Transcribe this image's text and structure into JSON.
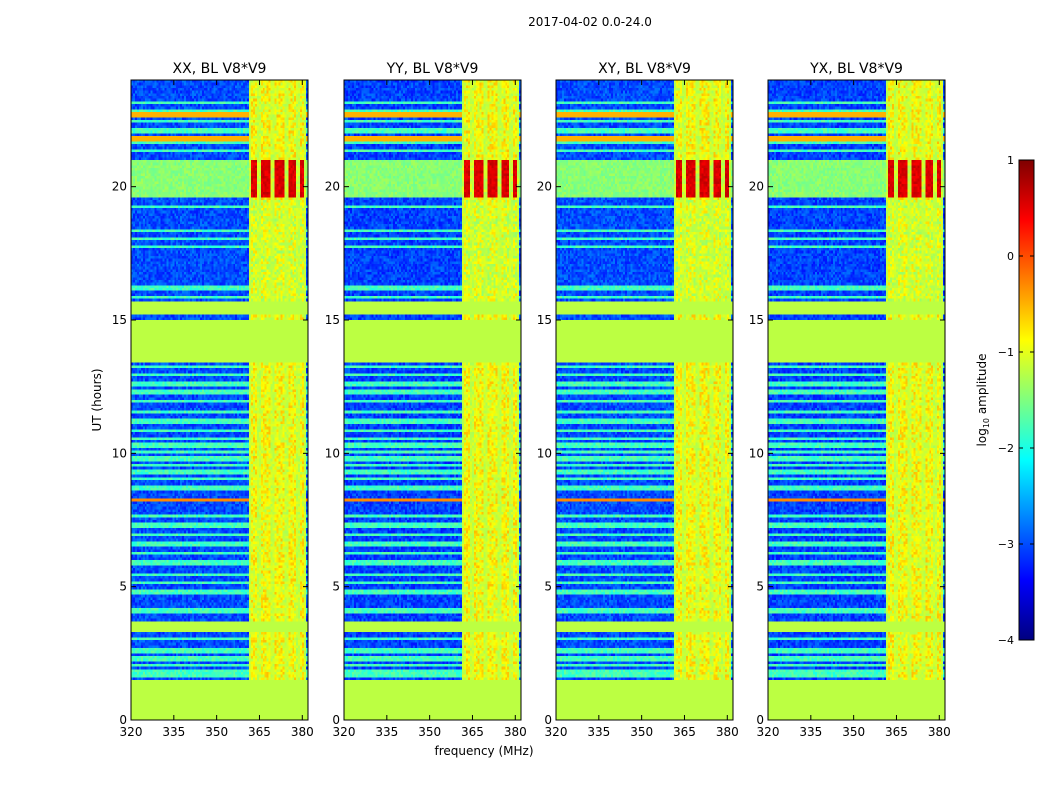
{
  "chart_data": {
    "type": "heatmap",
    "suptitle": "2017-04-02 0.0-24.0",
    "xlabel": "frequency (MHz)",
    "ylabel": "UT (hours)",
    "xlim": [
      320,
      382
    ],
    "ylim": [
      0,
      24
    ],
    "xticks": [
      320,
      335,
      350,
      365,
      380
    ],
    "yticks": [
      0,
      5,
      10,
      15,
      20
    ],
    "panels": [
      {
        "title": "XX, BL V8*V9",
        "pol": "XX"
      },
      {
        "title": "YY, BL V8*V9",
        "pol": "YY"
      },
      {
        "title": "XY, BL V8*V9",
        "pol": "XY"
      },
      {
        "title": "YX, BL V8*V9",
        "pol": "YX"
      }
    ],
    "flagged_hours": [
      [
        0,
        1.55
      ],
      [
        3.3,
        3.65
      ],
      [
        13.4,
        15.0
      ],
      [
        15.2,
        15.7
      ]
    ],
    "flagged_level": -1.2,
    "band_region_mhz": [
      361,
      381
    ],
    "band_edges_mhz": [
      361.2,
      364.6,
      369.6,
      374.4,
      378.3,
      381.0
    ],
    "bright_band_hours": [
      [
        19.6,
        21.0
      ]
    ],
    "rfi_hours": [
      1.7,
      1.85,
      2.05,
      2.3,
      2.6,
      3.05,
      4.1,
      4.8,
      5.15,
      5.45,
      5.9,
      6.25,
      6.6,
      6.95,
      7.3,
      7.65,
      8.25,
      8.7,
      9.05,
      9.3,
      9.55,
      9.8,
      10.05,
      10.3,
      10.55,
      10.85,
      11.2,
      11.55,
      11.95,
      12.3,
      12.6,
      12.95,
      13.25,
      15.85,
      16.2,
      17.75,
      18.05,
      18.35,
      19.25,
      21.35,
      21.7,
      22.1,
      22.45,
      22.8,
      23.15
    ],
    "colorbar": {
      "label_prefix": "log",
      "label_sub": "10",
      "label_suffix": " amplitude",
      "range": [
        -4,
        1
      ],
      "ticks": [
        1,
        0,
        -1,
        -2,
        -3,
        -4
      ],
      "tick_labels": [
        "1",
        "0",
        "−1",
        "−2",
        "−3",
        "−4"
      ],
      "colormap": "jet",
      "stops": [
        "#00007f",
        "#0000ff",
        "#007fff",
        "#00ffff",
        "#7fff7f",
        "#ffff00",
        "#ff7f00",
        "#ff0000",
        "#7f0000"
      ]
    }
  }
}
